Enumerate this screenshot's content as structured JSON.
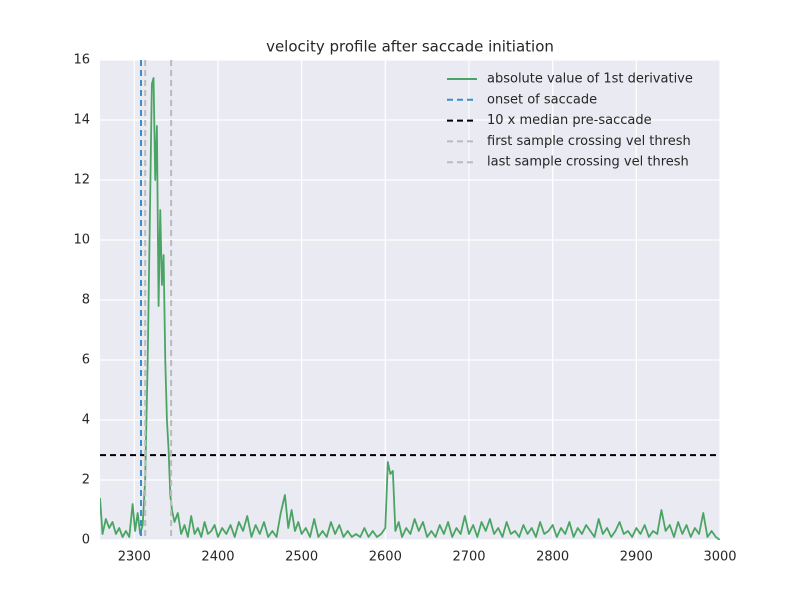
{
  "chart_data": {
    "type": "line",
    "title": "velocity profile after saccade initiation",
    "x": [
      2259,
      2262,
      2266,
      2270,
      2274,
      2278,
      2282,
      2286,
      2290,
      2294,
      2298,
      2301,
      2304,
      2307,
      2310,
      2313,
      2316,
      2319,
      2321,
      2323,
      2325,
      2327,
      2329,
      2331,
      2333,
      2335,
      2337,
      2339,
      2341,
      2343,
      2345,
      2348,
      2352,
      2356,
      2360,
      2364,
      2368,
      2372,
      2376,
      2380,
      2384,
      2388,
      2392,
      2396,
      2400,
      2405,
      2410,
      2415,
      2420,
      2425,
      2430,
      2435,
      2440,
      2445,
      2450,
      2455,
      2460,
      2465,
      2470,
      2475,
      2480,
      2484,
      2488,
      2492,
      2496,
      2500,
      2505,
      2510,
      2515,
      2520,
      2525,
      2530,
      2535,
      2540,
      2545,
      2550,
      2555,
      2560,
      2565,
      2570,
      2575,
      2580,
      2585,
      2590,
      2595,
      2600,
      2603,
      2606,
      2609,
      2612,
      2616,
      2620,
      2625,
      2630,
      2635,
      2640,
      2645,
      2650,
      2655,
      2660,
      2665,
      2670,
      2675,
      2680,
      2685,
      2690,
      2695,
      2700,
      2705,
      2710,
      2715,
      2720,
      2725,
      2730,
      2735,
      2740,
      2745,
      2750,
      2755,
      2760,
      2765,
      2770,
      2775,
      2780,
      2785,
      2790,
      2795,
      2800,
      2805,
      2810,
      2815,
      2820,
      2825,
      2830,
      2835,
      2840,
      2845,
      2850,
      2855,
      2860,
      2865,
      2870,
      2875,
      2880,
      2885,
      2890,
      2895,
      2900,
      2905,
      2910,
      2915,
      2920,
      2925,
      2930,
      2935,
      2940,
      2945,
      2950,
      2955,
      2960,
      2965,
      2970,
      2975,
      2980,
      2985,
      2990,
      2995,
      3000
    ],
    "series": [
      {
        "name": "absolute value of 1st derivative",
        "color": "#4aa564",
        "values": [
          1.4,
          0.2,
          0.7,
          0.4,
          0.6,
          0.2,
          0.4,
          0.1,
          0.3,
          0.1,
          1.2,
          0.3,
          0.9,
          0.2,
          0.5,
          2.0,
          6.0,
          11.5,
          15.2,
          15.4,
          12.0,
          13.8,
          7.8,
          11.0,
          8.5,
          9.5,
          6.0,
          4.0,
          3.0,
          1.5,
          1.0,
          0.6,
          0.9,
          0.2,
          0.5,
          0.1,
          0.8,
          0.2,
          0.4,
          0.1,
          0.6,
          0.2,
          0.3,
          0.5,
          0.1,
          0.4,
          0.2,
          0.5,
          0.1,
          0.6,
          0.3,
          0.8,
          0.1,
          0.5,
          0.2,
          0.6,
          0.1,
          0.3,
          0.1,
          0.9,
          1.5,
          0.4,
          1.0,
          0.3,
          0.6,
          0.2,
          0.4,
          0.1,
          0.7,
          0.1,
          0.3,
          0.1,
          0.6,
          0.2,
          0.5,
          0.1,
          0.3,
          0.1,
          0.2,
          0.1,
          0.4,
          0.1,
          0.3,
          0.1,
          0.2,
          0.4,
          2.6,
          2.2,
          2.3,
          0.3,
          0.6,
          0.1,
          0.4,
          0.2,
          0.7,
          0.3,
          0.6,
          0.1,
          0.3,
          0.1,
          0.5,
          0.2,
          0.6,
          0.1,
          0.4,
          0.2,
          0.8,
          0.2,
          0.5,
          0.1,
          0.6,
          0.3,
          0.7,
          0.2,
          0.4,
          0.1,
          0.6,
          0.2,
          0.3,
          0.1,
          0.5,
          0.2,
          0.4,
          0.1,
          0.6,
          0.2,
          0.3,
          0.5,
          0.1,
          0.4,
          0.2,
          0.6,
          0.1,
          0.4,
          0.2,
          0.5,
          0.3,
          0.1,
          0.7,
          0.2,
          0.4,
          0.1,
          0.3,
          0.6,
          0.2,
          0.3,
          0.1,
          0.4,
          0.2,
          0.5,
          0.1,
          0.3,
          0.2,
          1.0,
          0.3,
          0.5,
          0.1,
          0.6,
          0.2,
          0.5,
          0.1,
          0.4,
          0.2,
          0.9,
          0.1,
          0.3,
          0.1,
          0.0
        ]
      }
    ],
    "reference_lines": [
      {
        "name": "onset of saccade",
        "color": "#3a8fc9",
        "x": 2308
      },
      {
        "name": "10 x median pre-saccade",
        "color": "#000000",
        "y": 2.83
      },
      {
        "name": "first sample crossing vel thresh",
        "color": "#bbbbbb",
        "x": 2313
      },
      {
        "name": "last sample crossing vel thresh",
        "color": "#bbbbbb",
        "x": 2344
      }
    ],
    "xlim": [
      2259,
      3000
    ],
    "ylim": [
      0,
      16
    ],
    "xticks": [
      2300,
      2400,
      2500,
      2600,
      2700,
      2800,
      2900,
      3000
    ],
    "yticks": [
      0,
      2,
      4,
      6,
      8,
      10,
      12,
      14,
      16
    ],
    "grid": true,
    "legend": "upper right"
  }
}
